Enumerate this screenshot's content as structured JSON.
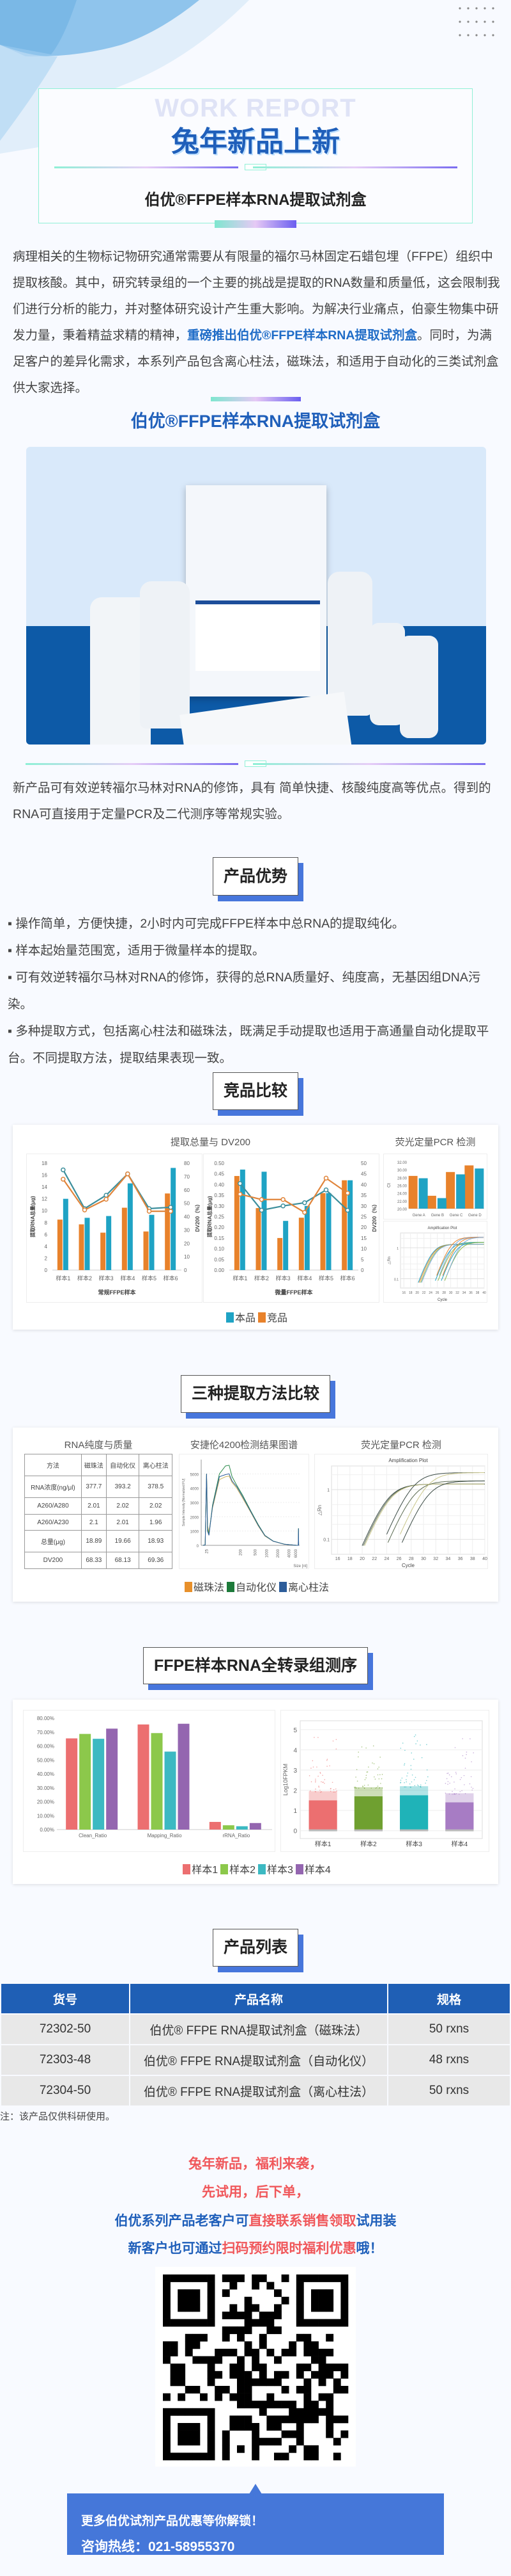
{
  "header": {
    "watermark": "WORK REPORT",
    "title": "兔年新品上新",
    "subtitle": "伯优®FFPE样本RNA提取试剂盒"
  },
  "intro": {
    "text_before": "病理相关的生物标记物研究通常需要从有限量的福尔马林固定石蜡包埋（FFPE）组织中提取核酸。其中，研究转录组的一个主要的挑战是提取的RNA数量和质量低，这会限制我们进行分析的能力，并对整体研究设计产生重大影响。为解决行业痛点，伯豪生物集中研发力量，秉着精益求精的精神，",
    "highlight": "重磅推出伯优®FFPE样本RNA提取试剂盒",
    "text_after": "。同时，为满足客户的差异化需求，本系列产品包含离心柱法，磁珠法，和适用于自动化的三类试剂盒供大家选择。"
  },
  "product": {
    "heading": "伯优®FFPE样本RNA提取试剂盒",
    "description": "新产品可有效逆转福尔马林对RNA的修饰，具有 简单快捷、核酸纯度高等优点。得到的RNA可直接用于定量PCR及二代测序等常规实验。"
  },
  "advantages": {
    "heading": "产品优势",
    "items": [
      "▪ 操作简单，方便快捷，2小时内可完成FFPE样本中总RNA的提取纯化。",
      "▪ 样本起始量范围宽，适用于微量样本的提取。",
      "▪ 可有效逆转福尔马林对RNA的修饰，获得的总RNA质量好、纯度高，无基因组DNA污染。",
      "▪ 多种提取方式，包括离心柱法和磁珠法，既满足手动提取也适用于高通量自动化提取平台。不同提取方法，提取结果表现一致。"
    ]
  },
  "comparison": {
    "heading": "竞品比较",
    "title_left": "提取总量与 DV200",
    "title_right": "荧光定量PCR 检测",
    "legend": [
      "本品",
      "竞品"
    ]
  },
  "methods": {
    "heading": "三种提取方法比较",
    "title_table": "RNA纯度与质量",
    "title_bioanalyzer": "安捷伦4200检测结果图谱",
    "title_pcr": "荧光定量PCR 检测",
    "legend": [
      "磁珠法",
      "自动化仪",
      "离心柱法"
    ]
  },
  "sequencing": {
    "heading": "FFPE样本RNA全转录组测序",
    "legend": [
      "样本1",
      "样本2",
      "样本3",
      "样本4"
    ]
  },
  "product_list": {
    "heading": "产品列表",
    "columns": [
      "货号",
      "产品名称",
      "规格"
    ],
    "rows": [
      [
        "72302-50",
        "伯优® FFPE RNA提取试剂盒（磁珠法）",
        "50 rxns"
      ],
      [
        "72303-48",
        "伯优® FFPE RNA提取试剂盒（自动化仪）",
        "48 rxns"
      ],
      [
        "72304-50",
        "伯优® FFPE RNA提取试剂盒（离心柱法）",
        "50 rxns"
      ]
    ],
    "note": "注：该产品仅供科研使用。"
  },
  "promo": {
    "line1": "兔年新品，福利来袭，",
    "line2": "先试用，后下单，",
    "line3_a": "伯优系列产品老客户可",
    "line3_b": "直接联系销售领取",
    "line3_c": "试用装",
    "line4_a": "新客户也可通过",
    "line4_b": "扫码预约限时福利优惠",
    "line4_c": "哦！",
    "callout_line1": "更多伯优试剂产品优惠等你解锁！",
    "callout_line2": "咨询热线：021-58955370"
  },
  "colors": {
    "brand_blue": "#1f5fba",
    "accent_red": "#f0575a",
    "teal": "#1fa3c4",
    "orange": "#e8822b",
    "table_header": "#1f5fb5",
    "callout": "#4577d9"
  },
  "icons": {
    "qr": "qr-code",
    "product_photo": "product-kit-photo",
    "dots": "dot-grid-decoration"
  },
  "chart_data": [
    {
      "type": "bar+line",
      "xlabel": "常规FFPE样本",
      "ylabel": "提取RNA总量(μg)",
      "y2label": "DV200（%）",
      "categories": [
        "样本1",
        "样本2",
        "样本3",
        "样本4",
        "样本5",
        "样本6"
      ],
      "ylim": [
        0,
        18
      ],
      "yticks": [
        0,
        2,
        4,
        6,
        8,
        10,
        12,
        14,
        16,
        18
      ],
      "y2lim": [
        0,
        80
      ],
      "y2ticks": [
        0,
        10,
        20,
        30,
        40,
        50,
        60,
        70,
        80
      ],
      "series": [
        {
          "name": "本品",
          "kind": "bar",
          "axis": "left",
          "color": "#1fa3c4",
          "values": [
            12.0,
            8.8,
            9.1,
            14.6,
            9.3,
            17.2
          ]
        },
        {
          "name": "竞品",
          "kind": "bar",
          "axis": "left",
          "color": "#e8822b",
          "values": [
            8.5,
            7.7,
            6.3,
            10.5,
            6.5,
            12.9
          ]
        },
        {
          "name": "本品",
          "kind": "line",
          "axis": "right",
          "color": "#3d8f9c",
          "values": [
            75,
            46,
            56,
            72,
            46,
            47
          ]
        },
        {
          "name": "竞品",
          "kind": "line",
          "axis": "right",
          "color": "#e0843a",
          "values": [
            68,
            45,
            53,
            72,
            44,
            44
          ]
        }
      ]
    },
    {
      "type": "bar+line",
      "xlabel": "微量FFPE样本",
      "ylabel": "提取RNA总量(μg)",
      "y2label": "DV200（%）",
      "categories": [
        "样本1",
        "样本2",
        "样本3",
        "样本4",
        "样本5",
        "样本6"
      ],
      "ylim": [
        0,
        0.5
      ],
      "yticks": [
        "0.00",
        "0.05",
        "0.10",
        "0.15",
        "0.20",
        "0.25",
        "0.30",
        "0.35",
        "0.40",
        "0.45",
        "0.50"
      ],
      "y2lim": [
        0,
        50
      ],
      "y2ticks": [
        0,
        5,
        10,
        15,
        20,
        25,
        30,
        35,
        40,
        45,
        50
      ],
      "series": [
        {
          "name": "本品",
          "kind": "bar",
          "axis": "left",
          "color": "#1fa3c4",
          "values": [
            0.47,
            0.46,
            0.23,
            0.3,
            0.36,
            0.42
          ]
        },
        {
          "name": "竞品",
          "kind": "bar",
          "axis": "left",
          "color": "#e8822b",
          "values": [
            0.44,
            0.29,
            0.15,
            0.245,
            0.36,
            0.42
          ]
        },
        {
          "name": "本品",
          "kind": "line",
          "axis": "right",
          "color": "#3d8f9c",
          "values": [
            40.5,
            28,
            30,
            31.5,
            37.5,
            28
          ]
        },
        {
          "name": "竞品",
          "kind": "line",
          "axis": "right",
          "color": "#e0843a",
          "values": [
            35.5,
            33,
            33,
            27,
            43,
            36
          ]
        }
      ]
    },
    {
      "type": "bar",
      "ylabel": "Ct",
      "categories": [
        "Gene A",
        "Gene B",
        "Gene C",
        "Gene D"
      ],
      "ylim": [
        20,
        32
      ],
      "yticks": [
        "20.00",
        "22.00",
        "24.00",
        "26.00",
        "28.00",
        "30.00",
        "32.00"
      ],
      "series": [
        {
          "color": "#e8822b",
          "values": [
            28.4,
            23.3,
            29.4,
            31.1
          ]
        },
        {
          "color": "#1fa3c4",
          "values": [
            27.8,
            22.7,
            28.8,
            30.3
          ]
        }
      ]
    },
    {
      "type": "line",
      "title": "Amplification Plot",
      "xlabel": "Cycle",
      "ylabel": "△Rn",
      "xlim": [
        15,
        40
      ],
      "xticks": [
        16,
        18,
        20,
        22,
        24,
        26,
        28,
        30,
        32,
        34,
        36,
        38,
        40
      ],
      "yscale": "log",
      "ylim": [
        0.05,
        3
      ],
      "yticks": [
        0.1,
        1
      ],
      "curve_onset_cycles": [
        20.3,
        20.6,
        21.0,
        21.3,
        25.4,
        25.8,
        26.2,
        26.6,
        27.2,
        27.6,
        28.2,
        28.8
      ],
      "colors": [
        "#1fa3c4",
        "#e8822b",
        "#8fb84a",
        "#7aa9d8"
      ]
    },
    {
      "type": "table",
      "columns": [
        "方法",
        "磁珠法",
        "自动化仪",
        "离心柱法"
      ],
      "rows": [
        [
          "RNA浓度(ng/μl)",
          "377.7",
          "393.2",
          "378.5"
        ],
        [
          "A260/A280",
          "2.01",
          "2.02",
          "2.02"
        ],
        [
          "A260/A230",
          "2.1",
          "2.01",
          "1.96"
        ],
        [
          "总量(μg)",
          "18.89",
          "19.66",
          "18.93"
        ],
        [
          "DV200",
          "68.33",
          "68.13",
          "69.36"
        ]
      ]
    },
    {
      "type": "line",
      "xlabel": "Size [nt]",
      "ylabel": "Sample Intensity [Normalized FU]",
      "xscale": "log",
      "xticks": [
        25,
        200,
        500,
        1000,
        2000,
        4000,
        6000
      ],
      "ylim": [
        0,
        6000
      ],
      "yticks": [
        0,
        1000,
        2000,
        3000,
        4000,
        5000
      ],
      "series": [
        {
          "name": "磁珠法",
          "color": "#c9b25a",
          "points": [
            [
              20,
              0
            ],
            [
              23,
              30
            ],
            [
              25,
              5000
            ],
            [
              26.5,
              1400
            ],
            [
              29,
              900
            ],
            [
              36,
              2600
            ],
            [
              55,
              4600
            ],
            [
              80,
              4800
            ],
            [
              100,
              4850
            ],
            [
              120,
              4400
            ],
            [
              160,
              4000
            ],
            [
              230,
              3300
            ],
            [
              380,
              2300
            ],
            [
              600,
              1350
            ],
            [
              900,
              650
            ],
            [
              1500,
              280
            ],
            [
              3000,
              70
            ],
            [
              6500,
              0
            ],
            [
              7000,
              0
            ],
            [
              7100,
              1150
            ],
            [
              7200,
              0
            ]
          ]
        },
        {
          "name": "自动化仪",
          "color": "#2a8a4a",
          "points": [
            [
              20,
              0
            ],
            [
              23,
              30
            ],
            [
              25,
              5000
            ],
            [
              26.5,
              1200
            ],
            [
              29,
              750
            ],
            [
              36,
              2800
            ],
            [
              55,
              5000
            ],
            [
              80,
              5550
            ],
            [
              100,
              5600
            ],
            [
              120,
              4800
            ],
            [
              160,
              4200
            ],
            [
              230,
              3500
            ],
            [
              380,
              2400
            ],
            [
              600,
              1450
            ],
            [
              900,
              700
            ],
            [
              1500,
              300
            ],
            [
              3000,
              80
            ],
            [
              6500,
              0
            ],
            [
              7000,
              0
            ],
            [
              7100,
              1200
            ],
            [
              7200,
              0
            ]
          ]
        },
        {
          "name": "离心柱法",
          "color": "#2d5d9a",
          "points": [
            [
              20,
              0
            ],
            [
              23,
              30
            ],
            [
              25,
              5000
            ],
            [
              26.5,
              1000
            ],
            [
              29,
              700
            ],
            [
              36,
              2700
            ],
            [
              55,
              4800
            ],
            [
              80,
              4950
            ],
            [
              100,
              5000
            ],
            [
              120,
              4500
            ],
            [
              160,
              4100
            ],
            [
              230,
              3400
            ],
            [
              380,
              2350
            ],
            [
              600,
              1400
            ],
            [
              900,
              680
            ],
            [
              1500,
              290
            ],
            [
              3000,
              75
            ],
            [
              6500,
              0
            ],
            [
              7000,
              0
            ],
            [
              7100,
              1180
            ],
            [
              7200,
              0
            ]
          ]
        }
      ]
    },
    {
      "type": "line",
      "title": "Amplification Plot",
      "xlabel": "Cycle",
      "ylabel": "△Rn",
      "xlim": [
        15,
        40
      ],
      "xticks": [
        16,
        18,
        20,
        22,
        24,
        26,
        28,
        30,
        32,
        34,
        36,
        38,
        40
      ],
      "yscale": "log",
      "ylim": [
        0.05,
        3
      ],
      "yticks": [
        0.1,
        1
      ],
      "curve_onset_cycles": [
        20.0,
        20.2,
        20.4,
        24.0,
        24.2,
        26.2,
        26.5
      ],
      "colors": [
        "#3a4a44",
        "#5a6a50",
        "#c9c68a"
      ]
    },
    {
      "type": "bar",
      "categories": [
        "Clean_Ratio",
        "Mapping_Ratio",
        "rRNA_Ratio"
      ],
      "ylim": [
        0,
        80
      ],
      "yticks": [
        "0.00%",
        "10.00%",
        "20.00%",
        "30.00%",
        "40.00%",
        "50.00%",
        "60.00%",
        "70.00%",
        "80.00%"
      ],
      "series": [
        {
          "name": "样本1",
          "color": "#ec6f70",
          "values": [
            65.5,
            75.5,
            5.5
          ]
        },
        {
          "name": "样本2",
          "color": "#8cc84b",
          "values": [
            68.7,
            69.3,
            3.1
          ]
        },
        {
          "name": "样本3",
          "color": "#3cb9c2",
          "values": [
            65.2,
            56.0,
            2.4
          ]
        },
        {
          "name": "样本4",
          "color": "#9466b0",
          "values": [
            72.5,
            76.0,
            4.7
          ]
        }
      ]
    },
    {
      "type": "scatter",
      "ylabel": "Log10FPKM",
      "categories": [
        "样本1",
        "样本2",
        "样本3",
        "样本4"
      ],
      "ylim": [
        0,
        5
      ],
      "yticks": [
        0,
        1,
        2,
        3,
        4,
        5
      ],
      "series": [
        {
          "name": "样本1",
          "color": "#ec6f70",
          "dense_upper": 1.5,
          "max": 4.9
        },
        {
          "name": "样本2",
          "color": "#6fa030",
          "dense_upper": 1.7,
          "max": 4.7
        },
        {
          "name": "样本3",
          "color": "#1fb3b8",
          "dense_upper": 1.75,
          "max": 4.9
        },
        {
          "name": "样本4",
          "color": "#a77cc4",
          "dense_upper": 1.4,
          "max": 4.8
        }
      ]
    }
  ]
}
